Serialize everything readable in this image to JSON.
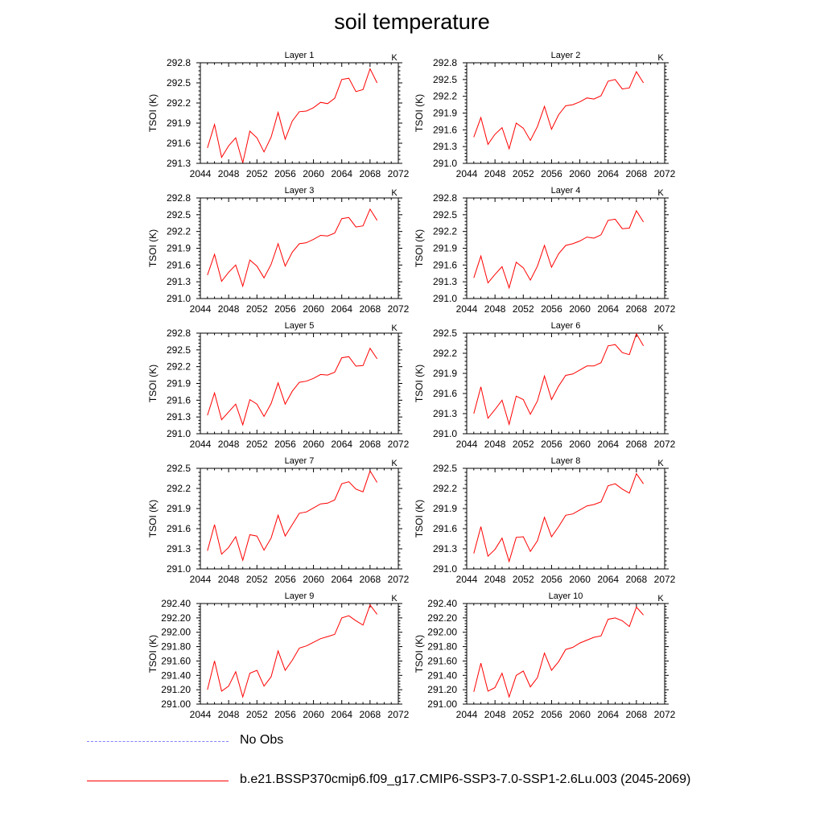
{
  "title": "soil temperature",
  "ylabel": "TSOI  (K)",
  "units_label": "K",
  "legend": [
    {
      "label": "No Obs",
      "color": "#8080ff",
      "style": "dashed"
    },
    {
      "label": "b.e21.BSSP370cmip6.f09_g17.CMIP6-SSP3-7.0-SSP1-2.6Lu.003 (2045-2069)",
      "color": "#ff0000",
      "style": "solid"
    }
  ],
  "chart_data": [
    {
      "type": "line",
      "title": "Layer 1",
      "xlim": [
        2044,
        2072
      ],
      "xticks": [
        "2044",
        "2048",
        "2052",
        "2056",
        "2060",
        "2064",
        "2068",
        "2072"
      ],
      "ylim": [
        291.3,
        292.8
      ],
      "yticks": [
        "291.3",
        "291.6",
        "291.9",
        "292.2",
        "292.5",
        "292.8"
      ],
      "ylabel": "TSOI  (K)",
      "series": [
        {
          "name": "b.e21.BSSP370cmip6.f09_g17.CMIP6-SSP3-7.0-SSP1-2.6Lu.003 (2045-2069)",
          "color": "#ff0000",
          "x": [
            2045,
            2046,
            2047,
            2048,
            2049,
            2050,
            2051,
            2052,
            2053,
            2054,
            2055,
            2056,
            2057,
            2058,
            2059,
            2060,
            2061,
            2062,
            2063,
            2064,
            2065,
            2066,
            2067,
            2068,
            2069
          ],
          "y": [
            291.53,
            291.88,
            291.39,
            291.56,
            291.68,
            291.31,
            291.78,
            291.68,
            291.47,
            291.69,
            292.06,
            291.66,
            291.93,
            292.07,
            292.08,
            292.13,
            292.21,
            292.19,
            292.27,
            292.55,
            292.57,
            292.37,
            292.4,
            292.71,
            292.5
          ]
        }
      ]
    },
    {
      "type": "line",
      "title": "Layer 2",
      "xlim": [
        2044,
        2072
      ],
      "xticks": [
        "2044",
        "2048",
        "2052",
        "2056",
        "2060",
        "2064",
        "2068",
        "2072"
      ],
      "ylim": [
        291.0,
        292.8
      ],
      "yticks": [
        "291.0",
        "291.3",
        "291.6",
        "291.9",
        "292.2",
        "292.5",
        "292.8"
      ],
      "ylabel": "TSOI  (K)",
      "series": [
        {
          "name": "b.e21.BSSP370cmip6.f09_g17.CMIP6-SSP3-7.0-SSP1-2.6Lu.003 (2045-2069)",
          "color": "#ff0000",
          "x": [
            2045,
            2046,
            2047,
            2048,
            2049,
            2050,
            2051,
            2052,
            2053,
            2054,
            2055,
            2056,
            2057,
            2058,
            2059,
            2060,
            2061,
            2062,
            2063,
            2064,
            2065,
            2066,
            2067,
            2068,
            2069
          ],
          "y": [
            291.47,
            291.82,
            291.34,
            291.52,
            291.64,
            291.26,
            291.72,
            291.63,
            291.41,
            291.66,
            292.02,
            291.61,
            291.87,
            292.03,
            292.05,
            292.1,
            292.17,
            292.15,
            292.21,
            292.47,
            292.5,
            292.33,
            292.35,
            292.64,
            292.44
          ]
        }
      ]
    },
    {
      "type": "line",
      "title": "Layer 3",
      "xlim": [
        2044,
        2072
      ],
      "xticks": [
        "2044",
        "2048",
        "2052",
        "2056",
        "2060",
        "2064",
        "2068",
        "2072"
      ],
      "ylim": [
        291.0,
        292.8
      ],
      "yticks": [
        "291.0",
        "291.3",
        "291.6",
        "291.9",
        "292.2",
        "292.5",
        "292.8"
      ],
      "ylabel": "TSOI  (K)",
      "series": [
        {
          "name": "b.e21.BSSP370cmip6.f09_g17.CMIP6-SSP3-7.0-SSP1-2.6Lu.003 (2045-2069)",
          "color": "#ff0000",
          "x": [
            2045,
            2046,
            2047,
            2048,
            2049,
            2050,
            2051,
            2052,
            2053,
            2054,
            2055,
            2056,
            2057,
            2058,
            2059,
            2060,
            2061,
            2062,
            2063,
            2064,
            2065,
            2066,
            2067,
            2068,
            2069
          ],
          "y": [
            291.42,
            291.79,
            291.31,
            291.47,
            291.6,
            291.22,
            291.69,
            291.58,
            291.37,
            291.61,
            291.98,
            291.58,
            291.83,
            291.98,
            292.0,
            292.06,
            292.13,
            292.12,
            292.17,
            292.43,
            292.45,
            292.28,
            292.3,
            292.6,
            292.4
          ]
        }
      ]
    },
    {
      "type": "line",
      "title": "Layer 4",
      "xlim": [
        2044,
        2072
      ],
      "xticks": [
        "2044",
        "2048",
        "2052",
        "2056",
        "2060",
        "2064",
        "2068",
        "2072"
      ],
      "ylim": [
        291.0,
        292.8
      ],
      "yticks": [
        "291.0",
        "291.3",
        "291.6",
        "291.9",
        "292.2",
        "292.5",
        "292.8"
      ],
      "ylabel": "TSOI  (K)",
      "series": [
        {
          "name": "b.e21.BSSP370cmip6.f09_g17.CMIP6-SSP3-7.0-SSP1-2.6Lu.003 (2045-2069)",
          "color": "#ff0000",
          "x": [
            2045,
            2046,
            2047,
            2048,
            2049,
            2050,
            2051,
            2052,
            2053,
            2054,
            2055,
            2056,
            2057,
            2058,
            2059,
            2060,
            2061,
            2062,
            2063,
            2064,
            2065,
            2066,
            2067,
            2068,
            2069
          ],
          "y": [
            291.37,
            291.76,
            291.28,
            291.43,
            291.57,
            291.19,
            291.65,
            291.55,
            291.33,
            291.58,
            291.95,
            291.56,
            291.8,
            291.95,
            291.98,
            292.03,
            292.1,
            292.08,
            292.14,
            292.4,
            292.42,
            292.25,
            292.26,
            292.57,
            292.37
          ]
        }
      ]
    },
    {
      "type": "line",
      "title": "Layer 5",
      "xlim": [
        2044,
        2072
      ],
      "xticks": [
        "2044",
        "2048",
        "2052",
        "2056",
        "2060",
        "2064",
        "2068",
        "2072"
      ],
      "ylim": [
        291.0,
        292.8
      ],
      "yticks": [
        "291.0",
        "291.3",
        "291.6",
        "291.9",
        "292.2",
        "292.5",
        "292.8"
      ],
      "ylabel": "TSOI  (K)",
      "series": [
        {
          "name": "b.e21.BSSP370cmip6.f09_g17.CMIP6-SSP3-7.0-SSP1-2.6Lu.003 (2045-2069)",
          "color": "#ff0000",
          "x": [
            2045,
            2046,
            2047,
            2048,
            2049,
            2050,
            2051,
            2052,
            2053,
            2054,
            2055,
            2056,
            2057,
            2058,
            2059,
            2060,
            2061,
            2062,
            2063,
            2064,
            2065,
            2066,
            2067,
            2068,
            2069
          ],
          "y": [
            291.33,
            291.73,
            291.25,
            291.39,
            291.53,
            291.16,
            291.61,
            291.53,
            291.31,
            291.54,
            291.91,
            291.53,
            291.76,
            291.92,
            291.94,
            291.99,
            292.06,
            292.05,
            292.1,
            292.36,
            292.38,
            292.21,
            292.22,
            292.53,
            292.34
          ]
        }
      ]
    },
    {
      "type": "line",
      "title": "Layer 6",
      "xlim": [
        2044,
        2072
      ],
      "xticks": [
        "2044",
        "2048",
        "2052",
        "2056",
        "2060",
        "2064",
        "2068",
        "2072"
      ],
      "ylim": [
        291.0,
        292.5
      ],
      "yticks": [
        "291.0",
        "291.3",
        "291.6",
        "291.9",
        "292.2",
        "292.5"
      ],
      "ylabel": "TSOI  (K)",
      "series": [
        {
          "name": "b.e21.BSSP370cmip6.f09_g17.CMIP6-SSP3-7.0-SSP1-2.6Lu.003 (2045-2069)",
          "color": "#ff0000",
          "x": [
            2045,
            2046,
            2047,
            2048,
            2049,
            2050,
            2051,
            2052,
            2053,
            2054,
            2055,
            2056,
            2057,
            2058,
            2059,
            2060,
            2061,
            2062,
            2063,
            2064,
            2065,
            2066,
            2067,
            2068,
            2069
          ],
          "y": [
            291.3,
            291.7,
            291.23,
            291.36,
            291.5,
            291.14,
            291.56,
            291.51,
            291.29,
            291.49,
            291.86,
            291.51,
            291.71,
            291.87,
            291.89,
            291.95,
            292.01,
            292.01,
            292.06,
            292.31,
            292.33,
            292.21,
            292.18,
            292.49,
            292.31
          ]
        }
      ]
    },
    {
      "type": "line",
      "title": "Layer 7",
      "xlim": [
        2044,
        2072
      ],
      "xticks": [
        "2044",
        "2048",
        "2052",
        "2056",
        "2060",
        "2064",
        "2068",
        "2072"
      ],
      "ylim": [
        291.0,
        292.5
      ],
      "yticks": [
        "291.0",
        "291.3",
        "291.6",
        "291.9",
        "292.2",
        "292.5"
      ],
      "ylabel": "TSOI  (K)",
      "series": [
        {
          "name": "b.e21.BSSP370cmip6.f09_g17.CMIP6-SSP3-7.0-SSP1-2.6Lu.003 (2045-2069)",
          "color": "#ff0000",
          "x": [
            2045,
            2046,
            2047,
            2048,
            2049,
            2050,
            2051,
            2052,
            2053,
            2054,
            2055,
            2056,
            2057,
            2058,
            2059,
            2060,
            2061,
            2062,
            2063,
            2064,
            2065,
            2066,
            2067,
            2068,
            2069
          ],
          "y": [
            291.27,
            291.66,
            291.22,
            291.32,
            291.48,
            291.13,
            291.51,
            291.49,
            291.28,
            291.46,
            291.8,
            291.49,
            291.66,
            291.83,
            291.85,
            291.91,
            291.97,
            291.98,
            292.03,
            292.27,
            292.3,
            292.19,
            292.15,
            292.46,
            292.29
          ]
        }
      ]
    },
    {
      "type": "line",
      "title": "Layer 8",
      "xlim": [
        2044,
        2072
      ],
      "xticks": [
        "2044",
        "2048",
        "2052",
        "2056",
        "2060",
        "2064",
        "2068",
        "2072"
      ],
      "ylim": [
        291.0,
        292.5
      ],
      "yticks": [
        "291.0",
        "291.3",
        "291.6",
        "291.9",
        "292.2",
        "292.5"
      ],
      "ylabel": "TSOI  (K)",
      "series": [
        {
          "name": "b.e21.BSSP370cmip6.f09_g17.CMIP6-SSP3-7.0-SSP1-2.6Lu.003 (2045-2069)",
          "color": "#ff0000",
          "x": [
            2045,
            2046,
            2047,
            2048,
            2049,
            2050,
            2051,
            2052,
            2053,
            2054,
            2055,
            2056,
            2057,
            2058,
            2059,
            2060,
            2061,
            2062,
            2063,
            2064,
            2065,
            2066,
            2067,
            2068,
            2069
          ],
          "y": [
            291.23,
            291.63,
            291.19,
            291.29,
            291.46,
            291.11,
            291.47,
            291.48,
            291.26,
            291.42,
            291.77,
            291.48,
            291.63,
            291.8,
            291.82,
            291.88,
            291.94,
            291.96,
            292.0,
            292.24,
            292.27,
            292.19,
            292.13,
            292.42,
            292.27
          ]
        }
      ]
    },
    {
      "type": "line",
      "title": "Layer 9",
      "xlim": [
        2044,
        2072
      ],
      "xticks": [
        "2044",
        "2048",
        "2052",
        "2056",
        "2060",
        "2064",
        "2068",
        "2072"
      ],
      "ylim": [
        291.0,
        292.4
      ],
      "yticks": [
        "291.00",
        "291.20",
        "291.40",
        "291.60",
        "291.80",
        "292.00",
        "292.20",
        "292.40"
      ],
      "ylabel": "TSOI  (K)",
      "series": [
        {
          "name": "b.e21.BSSP370cmip6.f09_g17.CMIP6-SSP3-7.0-SSP1-2.6Lu.003 (2045-2069)",
          "color": "#ff0000",
          "x": [
            2045,
            2046,
            2047,
            2048,
            2049,
            2050,
            2051,
            2052,
            2053,
            2054,
            2055,
            2056,
            2057,
            2058,
            2059,
            2060,
            2061,
            2062,
            2063,
            2064,
            2065,
            2066,
            2067,
            2068,
            2069
          ],
          "y": [
            291.2,
            291.6,
            291.18,
            291.25,
            291.45,
            291.1,
            291.43,
            291.47,
            291.25,
            291.38,
            291.74,
            291.47,
            291.61,
            291.78,
            291.81,
            291.86,
            291.91,
            291.94,
            291.97,
            292.2,
            292.23,
            292.16,
            292.1,
            292.38,
            292.25
          ]
        }
      ]
    },
    {
      "type": "line",
      "title": "Layer 10",
      "xlim": [
        2044,
        2072
      ],
      "xticks": [
        "2044",
        "2048",
        "2052",
        "2056",
        "2060",
        "2064",
        "2068",
        "2072"
      ],
      "ylim": [
        291.0,
        292.4
      ],
      "yticks": [
        "291.00",
        "291.20",
        "291.40",
        "291.60",
        "291.80",
        "292.00",
        "292.20",
        "292.40"
      ],
      "ylabel": "TSOI  (K)",
      "series": [
        {
          "name": "b.e21.BSSP370cmip6.f09_g17.CMIP6-SSP3-7.0-SSP1-2.6Lu.003 (2045-2069)",
          "color": "#ff0000",
          "x": [
            2045,
            2046,
            2047,
            2048,
            2049,
            2050,
            2051,
            2052,
            2053,
            2054,
            2055,
            2056,
            2057,
            2058,
            2059,
            2060,
            2061,
            2062,
            2063,
            2064,
            2065,
            2066,
            2067,
            2068,
            2069
          ],
          "y": [
            291.17,
            291.57,
            291.18,
            291.23,
            291.43,
            291.1,
            291.4,
            291.46,
            291.24,
            291.37,
            291.71,
            291.47,
            291.59,
            291.76,
            291.79,
            291.85,
            291.89,
            291.93,
            291.95,
            292.18,
            292.2,
            292.16,
            292.08,
            292.35,
            292.24
          ]
        }
      ]
    }
  ]
}
